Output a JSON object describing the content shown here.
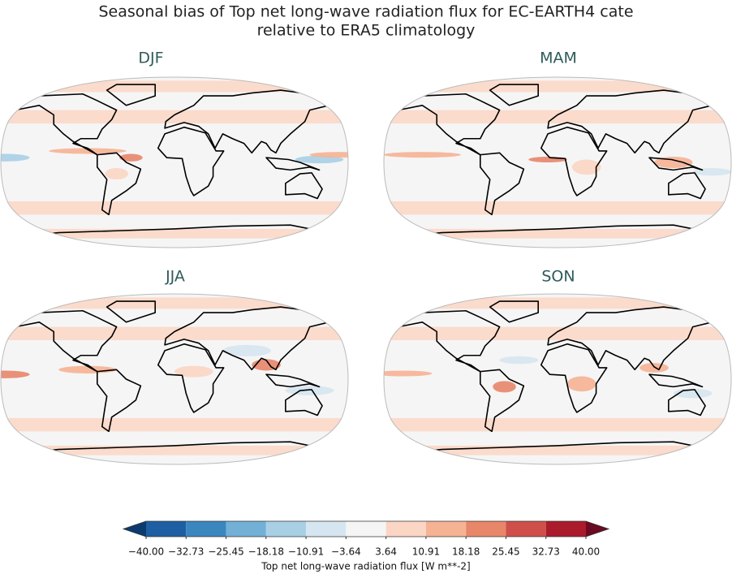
{
  "title": [
    "Seasonal bias of Top net long-wave radiation flux for EC-EARTH4 cate",
    "relative to ERA5 climatology"
  ],
  "panels": [
    {
      "title": "DJF"
    },
    {
      "title": "MAM"
    },
    {
      "title": "JJA"
    },
    {
      "title": "SON"
    }
  ],
  "colorbar": {
    "ticks": [
      {
        "value": -40,
        "label": "−40.00"
      },
      {
        "value": -32.73,
        "label": "−32.73"
      },
      {
        "value": -25.45,
        "label": "−25.45"
      },
      {
        "value": -18.18,
        "label": "−18.18"
      },
      {
        "value": -10.91,
        "label": "−10.91"
      },
      {
        "value": -3.64,
        "label": "−3.64"
      },
      {
        "value": 3.64,
        "label": "3.64"
      },
      {
        "value": 10.91,
        "label": "10.91"
      },
      {
        "value": 18.18,
        "label": "18.18"
      },
      {
        "value": 25.45,
        "label": "25.45"
      },
      {
        "value": 32.73,
        "label": "32.73"
      },
      {
        "value": 40,
        "label": "40.00"
      }
    ],
    "colors": [
      "#1d5fa2",
      "#3a87c0",
      "#72b0d6",
      "#a9cfe5",
      "#d5e6f0",
      "#f5f5f5",
      "#fbd6c4",
      "#f6b394",
      "#e8866a",
      "#cf4f4a",
      "#aa1b2c"
    ],
    "extend_colors": [
      "#0b3a6f",
      "#6b0a22"
    ],
    "label": "Top net long-wave radiation flux [W m**-2]"
  }
}
